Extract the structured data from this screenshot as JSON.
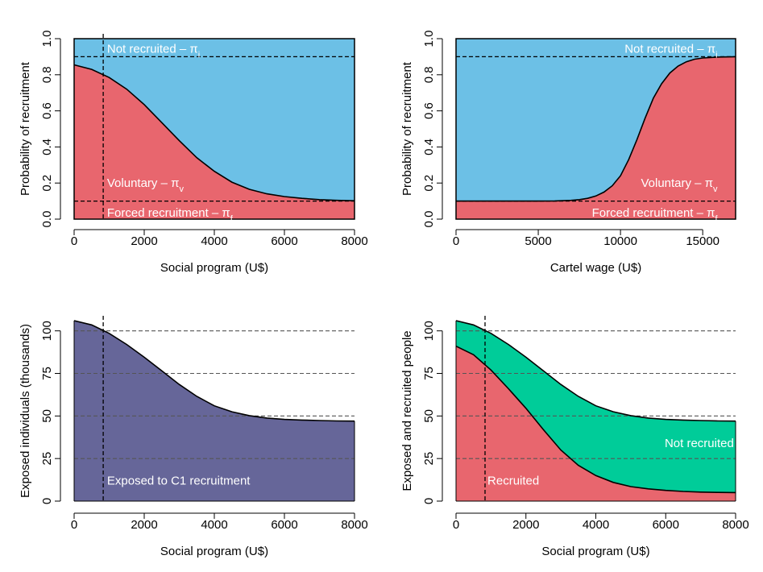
{
  "chart_data": [
    {
      "id": "p1",
      "type": "area",
      "xlabel": "Social program (U$)",
      "ylabel": "Probability of recruitment",
      "xlim": [
        0,
        8000
      ],
      "ylim": [
        0,
        1
      ],
      "xticks": [
        0,
        2000,
        4000,
        6000,
        8000
      ],
      "xtick_labels": [
        "0",
        "2000",
        "4000",
        "6000",
        "8000"
      ],
      "yticks": [
        0,
        0.2,
        0.4,
        0.6,
        0.8,
        1.0
      ],
      "ytick_labels": [
        "0.0",
        "0.2",
        "0.4",
        "0.6",
        "0.8",
        "1.0"
      ],
      "top": 1.0,
      "top_color": "#6cc0e6",
      "fill_color": "#e8666e",
      "curve": {
        "x": [
          0,
          500,
          1000,
          1500,
          2000,
          2500,
          3000,
          3500,
          4000,
          4500,
          5000,
          5500,
          6000,
          6500,
          7000,
          7500,
          8000
        ],
        "y": [
          0.855,
          0.83,
          0.785,
          0.72,
          0.635,
          0.535,
          0.435,
          0.34,
          0.265,
          0.205,
          0.165,
          0.14,
          0.125,
          0.115,
          0.108,
          0.104,
          0.102
        ]
      },
      "hlines": [
        0.9,
        0.1
      ],
      "vline_x": 830,
      "annotations": [
        {
          "text": "Not recruited – π",
          "sub": "i",
          "x": 940,
          "y": 0.945
        },
        {
          "text": "Voluntary – π",
          "sub": "v",
          "x": 940,
          "y": 0.2
        },
        {
          "text": "Forced recruitment – π",
          "sub": "f",
          "x": 940,
          "y": 0.035
        }
      ]
    },
    {
      "id": "p2",
      "type": "area",
      "xlabel": "Cartel wage (U$)",
      "ylabel": "Probability of recruitment",
      "xlim": [
        0,
        17000
      ],
      "ylim": [
        0,
        1
      ],
      "xticks": [
        0,
        5000,
        10000,
        15000
      ],
      "xtick_labels": [
        "0",
        "5000",
        "10000",
        "15000"
      ],
      "yticks": [
        0,
        0.2,
        0.4,
        0.6,
        0.8,
        1.0
      ],
      "ytick_labels": [
        "0.0",
        "0.2",
        "0.4",
        "0.6",
        "0.8",
        "1.0"
      ],
      "top": 1.0,
      "top_color": "#6cc0e6",
      "fill_color": "#e8666e",
      "curve": {
        "x": [
          0,
          1000,
          2000,
          3000,
          4000,
          5000,
          6000,
          7000,
          7500,
          8000,
          8500,
          9000,
          9500,
          10000,
          10500,
          11000,
          11500,
          12000,
          12500,
          13000,
          13500,
          14000,
          14500,
          15000,
          16000,
          17000
        ],
        "y": [
          0.1,
          0.1,
          0.1,
          0.1,
          0.1,
          0.1,
          0.101,
          0.104,
          0.108,
          0.115,
          0.128,
          0.15,
          0.185,
          0.24,
          0.33,
          0.44,
          0.56,
          0.67,
          0.75,
          0.81,
          0.848,
          0.872,
          0.886,
          0.893,
          0.898,
          0.9
        ]
      },
      "hlines": [
        0.9,
        0.1
      ],
      "annotations": [
        {
          "text": "Not recruited – π",
          "sub": "i",
          "x": 15900,
          "y": 0.945,
          "anchor": "end"
        },
        {
          "text": "Voluntary – π",
          "sub": "v",
          "x": 15900,
          "y": 0.2,
          "anchor": "end"
        },
        {
          "text": "Forced recruitment – π",
          "sub": "f",
          "x": 15900,
          "y": 0.035,
          "anchor": "end"
        }
      ]
    },
    {
      "id": "p3",
      "type": "area",
      "xlabel": "Social program  (U$)",
      "ylabel": "Exposed individuals (thousands)",
      "xlim": [
        0,
        8000
      ],
      "ylim": [
        0,
        106
      ],
      "xticks": [
        0,
        2000,
        4000,
        6000,
        8000
      ],
      "xtick_labels": [
        "0",
        "2000",
        "4000",
        "6000",
        "8000"
      ],
      "yticks": [
        0,
        25,
        50,
        75,
        100
      ],
      "ytick_labels": [
        "0",
        "25",
        "50",
        "75",
        "100"
      ],
      "fill_color": "#666699",
      "curve": {
        "x": [
          0,
          500,
          1000,
          1500,
          2000,
          2500,
          3000,
          3500,
          4000,
          4500,
          5000,
          5500,
          6000,
          6500,
          7000,
          7500,
          8000
        ],
        "y": [
          106,
          103.5,
          98.5,
          92,
          84.5,
          76.5,
          68.5,
          61.5,
          56,
          52.5,
          50.2,
          48.8,
          48,
          47.6,
          47.3,
          47.1,
          47
        ]
      },
      "hlines": [
        100,
        75,
        50,
        25
      ],
      "vline_x": 830,
      "annotations": [
        {
          "text": "Exposed to C1 recruitment",
          "x": 940,
          "y": 12
        }
      ]
    },
    {
      "id": "p4",
      "type": "area",
      "xlabel": "Social program  (U$)",
      "ylabel": "Exposed and recruited people",
      "xlim": [
        0,
        8000
      ],
      "ylim": [
        0,
        106
      ],
      "xticks": [
        0,
        2000,
        4000,
        6000,
        8000
      ],
      "xtick_labels": [
        "0",
        "2000",
        "4000",
        "6000",
        "8000"
      ],
      "yticks": [
        0,
        25,
        50,
        75,
        100
      ],
      "ytick_labels": [
        "0",
        "25",
        "50",
        "75",
        "100"
      ],
      "upper_color": "#00cc99",
      "fill_color": "#e8666e",
      "upper_curve": {
        "x": [
          0,
          500,
          1000,
          1500,
          2000,
          2500,
          3000,
          3500,
          4000,
          4500,
          5000,
          5500,
          6000,
          6500,
          7000,
          7500,
          8000
        ],
        "y": [
          106,
          103.5,
          98.5,
          92,
          84.5,
          76.5,
          68.5,
          61.5,
          56,
          52.5,
          50.2,
          48.8,
          48,
          47.6,
          47.3,
          47.1,
          47
        ]
      },
      "curve": {
        "x": [
          0,
          500,
          1000,
          1500,
          2000,
          2500,
          3000,
          3500,
          4000,
          4500,
          5000,
          5500,
          6000,
          6500,
          7000,
          7500,
          8000
        ],
        "y": [
          91,
          86,
          77,
          66,
          54.5,
          42,
          30,
          21,
          15,
          11,
          8.5,
          7.2,
          6.3,
          5.7,
          5.3,
          5.1,
          5
        ]
      },
      "hlines": [
        100,
        75,
        50,
        25
      ],
      "vline_x": 830,
      "annotations": [
        {
          "text": "Not recruited",
          "x": 7950,
          "y": 34,
          "anchor": "end"
        },
        {
          "text": "Recruited",
          "x": 900,
          "y": 12
        }
      ]
    }
  ]
}
